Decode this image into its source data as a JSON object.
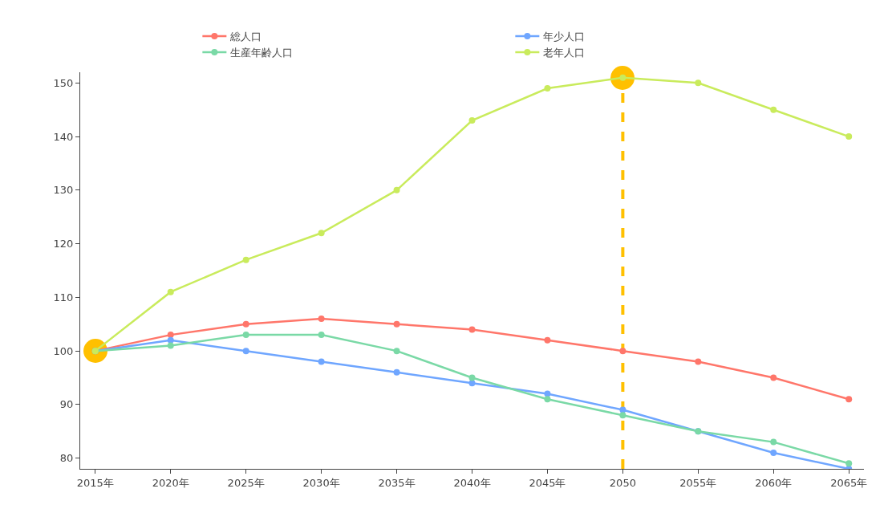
{
  "chart_data": {
    "type": "line",
    "categories": [
      "2015年",
      "2020年",
      "2025年",
      "2030年",
      "2035年",
      "2040年",
      "2045年",
      "2050",
      "2055年",
      "2060年",
      "2065年"
    ],
    "series": [
      {
        "name": "総人口",
        "color": "#ff766a",
        "values": [
          100,
          103,
          105,
          106,
          105,
          104,
          102,
          100,
          98,
          95,
          91
        ]
      },
      {
        "name": "年少人口",
        "color": "#6fa6ff",
        "values": [
          100,
          102,
          100,
          98,
          96,
          94,
          92,
          89,
          85,
          81,
          78
        ]
      },
      {
        "name": "生産年齢人口",
        "color": "#7ad9a6",
        "values": [
          100,
          101,
          103,
          103,
          100,
          95,
          91,
          88,
          85,
          83,
          79
        ]
      },
      {
        "name": "老年人口",
        "color": "#c9eb5c",
        "values": [
          100,
          111,
          117,
          122,
          130,
          143,
          149,
          151,
          150,
          145,
          140
        ]
      }
    ],
    "ylim": [
      78,
      152
    ],
    "yticks": [
      80,
      90,
      100,
      110,
      120,
      130,
      140,
      150
    ],
    "grid": false,
    "legend": "top",
    "marker": "circle",
    "line_style": "solid",
    "ref_lines": [
      {
        "axis": "x",
        "value": "2050",
        "color": "#ffc000",
        "line_style": "dashed"
      }
    ]
  }
}
